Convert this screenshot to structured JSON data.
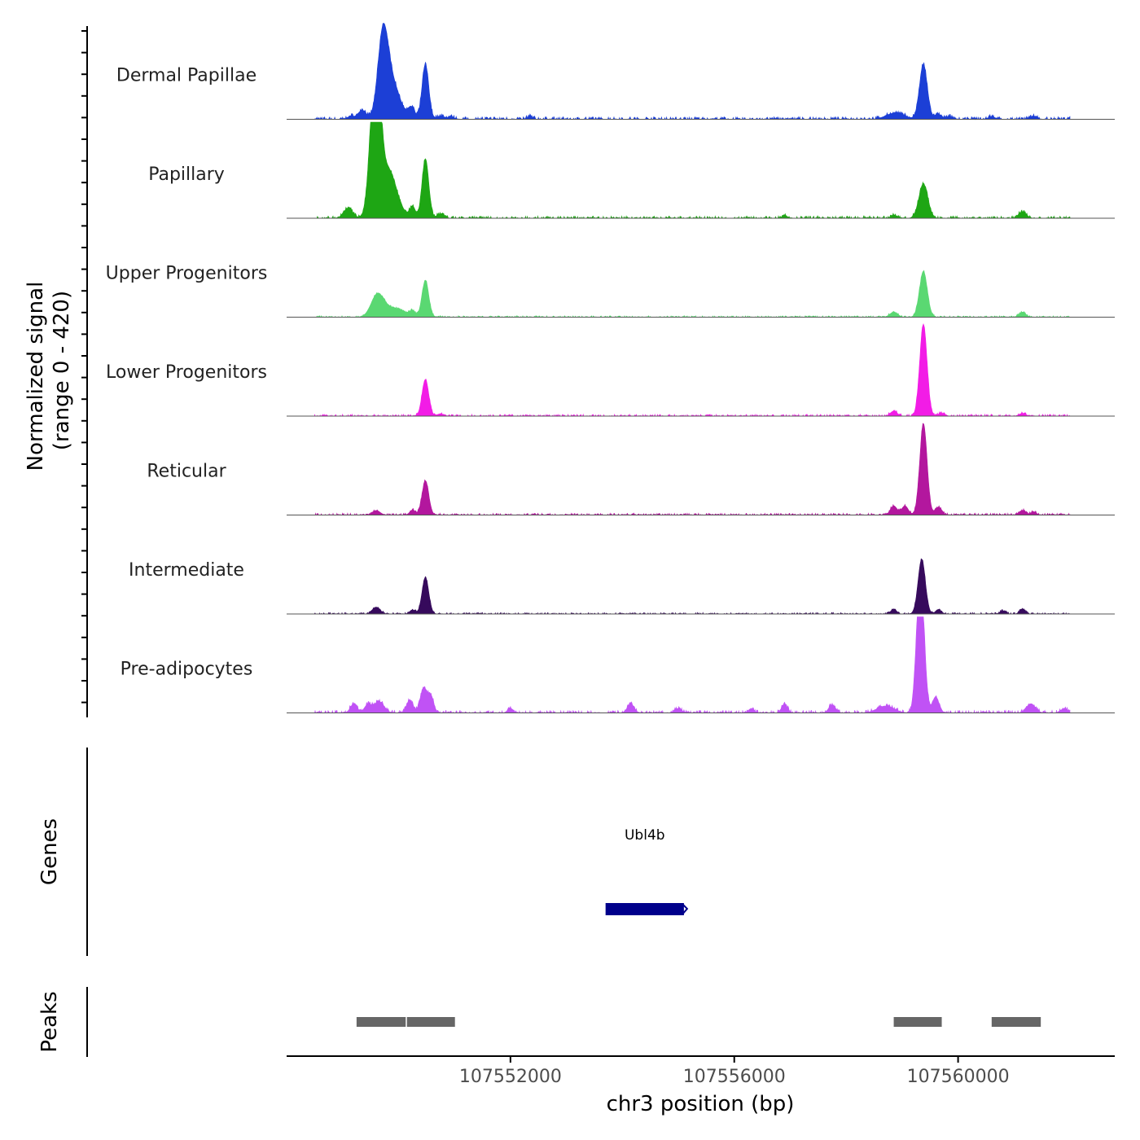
{
  "chart_data": {
    "type": "area",
    "title": "",
    "y_axis_label_line1": "Normalized signal",
    "y_axis_label_line2": "(range 0 - 420)",
    "genes_label": "Genes",
    "peaks_label": "Peaks",
    "xlabel": "chr3 position (bp)",
    "xlim": [
      107548000,
      107562800
    ],
    "ylim": [
      0,
      420
    ],
    "x_ticks": [
      107552000,
      107556000,
      107560000
    ],
    "x_tick_labels": [
      "107552000",
      "107556000",
      "107560000"
    ],
    "tracks": [
      {
        "name": "Dermal Papillae",
        "color": "#1c3fd6",
        "peaks": [
          {
            "center": 107549150,
            "width": 60,
            "height": 14
          },
          {
            "center": 107549350,
            "width": 70,
            "height": 40
          },
          {
            "center": 107549720,
            "width": 90,
            "height": 330
          },
          {
            "center": 107549880,
            "width": 140,
            "height": 160
          },
          {
            "center": 107550230,
            "width": 60,
            "height": 50
          },
          {
            "center": 107550480,
            "width": 60,
            "height": 240
          },
          {
            "center": 107550750,
            "width": 70,
            "height": 14
          },
          {
            "center": 107550950,
            "width": 50,
            "height": 10
          },
          {
            "center": 107552350,
            "width": 50,
            "height": 12
          },
          {
            "center": 107558880,
            "width": 160,
            "height": 28
          },
          {
            "center": 107559380,
            "width": 70,
            "height": 240
          },
          {
            "center": 107559650,
            "width": 60,
            "height": 22
          },
          {
            "center": 107559850,
            "width": 50,
            "height": 12
          },
          {
            "center": 107560600,
            "width": 60,
            "height": 12
          },
          {
            "center": 107561350,
            "width": 60,
            "height": 14
          },
          {
            "center": 107562050,
            "width": 50,
            "height": 20
          }
        ],
        "noise": 7
      },
      {
        "name": "Papillary",
        "color": "#1ea614",
        "peaks": [
          {
            "center": 107549100,
            "width": 80,
            "height": 45
          },
          {
            "center": 107549550,
            "width": 80,
            "height": 370
          },
          {
            "center": 107549620,
            "width": 70,
            "height": 400
          },
          {
            "center": 107549800,
            "width": 160,
            "height": 220
          },
          {
            "center": 107550250,
            "width": 50,
            "height": 50
          },
          {
            "center": 107550480,
            "width": 60,
            "height": 260
          },
          {
            "center": 107550750,
            "width": 60,
            "height": 20
          },
          {
            "center": 107556900,
            "width": 50,
            "height": 12
          },
          {
            "center": 107558850,
            "width": 50,
            "height": 15
          },
          {
            "center": 107559380,
            "width": 80,
            "height": 150
          },
          {
            "center": 107561150,
            "width": 70,
            "height": 28
          }
        ],
        "noise": 6
      },
      {
        "name": "Upper Progenitors",
        "color": "#5ad872",
        "peaks": [
          {
            "center": 107549620,
            "width": 110,
            "height": 90
          },
          {
            "center": 107549900,
            "width": 200,
            "height": 40
          },
          {
            "center": 107550250,
            "width": 50,
            "height": 22
          },
          {
            "center": 107550480,
            "width": 60,
            "height": 160
          },
          {
            "center": 107558850,
            "width": 70,
            "height": 22
          },
          {
            "center": 107559380,
            "width": 70,
            "height": 200
          },
          {
            "center": 107561150,
            "width": 60,
            "height": 22
          }
        ],
        "noise": 4
      },
      {
        "name": "Lower Progenitors",
        "color": "#f21ce6",
        "peaks": [
          {
            "center": 107550480,
            "width": 60,
            "height": 160
          },
          {
            "center": 107550750,
            "width": 60,
            "height": 10
          },
          {
            "center": 107558850,
            "width": 60,
            "height": 22
          },
          {
            "center": 107559380,
            "width": 65,
            "height": 400
          },
          {
            "center": 107559700,
            "width": 60,
            "height": 12
          },
          {
            "center": 107561150,
            "width": 60,
            "height": 12
          }
        ],
        "noise": 5
      },
      {
        "name": "Reticular",
        "color": "#b3179e",
        "peaks": [
          {
            "center": 107549600,
            "width": 70,
            "height": 20
          },
          {
            "center": 107550250,
            "width": 50,
            "height": 22
          },
          {
            "center": 107550480,
            "width": 60,
            "height": 150
          },
          {
            "center": 107558850,
            "width": 60,
            "height": 40
          },
          {
            "center": 107559050,
            "width": 60,
            "height": 40
          },
          {
            "center": 107559380,
            "width": 65,
            "height": 400
          },
          {
            "center": 107559650,
            "width": 60,
            "height": 35
          },
          {
            "center": 107561150,
            "width": 60,
            "height": 20
          },
          {
            "center": 107561350,
            "width": 50,
            "height": 14
          }
        ],
        "noise": 5
      },
      {
        "name": "Intermediate",
        "color": "#360a5c",
        "peaks": [
          {
            "center": 107549600,
            "width": 70,
            "height": 30
          },
          {
            "center": 107550250,
            "width": 50,
            "height": 18
          },
          {
            "center": 107550480,
            "width": 60,
            "height": 160
          },
          {
            "center": 107558850,
            "width": 50,
            "height": 22
          },
          {
            "center": 107559350,
            "width": 65,
            "height": 240
          },
          {
            "center": 107559650,
            "width": 50,
            "height": 20
          },
          {
            "center": 107560800,
            "width": 50,
            "height": 14
          },
          {
            "center": 107561150,
            "width": 50,
            "height": 22
          }
        ],
        "noise": 4
      },
      {
        "name": "Pre-adipocytes",
        "color": "#c052f5",
        "peaks": [
          {
            "center": 107549200,
            "width": 60,
            "height": 40
          },
          {
            "center": 107549450,
            "width": 60,
            "height": 35
          },
          {
            "center": 107549650,
            "width": 90,
            "height": 50
          },
          {
            "center": 107550200,
            "width": 60,
            "height": 55
          },
          {
            "center": 107550450,
            "width": 60,
            "height": 110
          },
          {
            "center": 107550580,
            "width": 50,
            "height": 70
          },
          {
            "center": 107552000,
            "width": 50,
            "height": 20
          },
          {
            "center": 107554150,
            "width": 60,
            "height": 40
          },
          {
            "center": 107555000,
            "width": 60,
            "height": 20
          },
          {
            "center": 107556300,
            "width": 50,
            "height": 18
          },
          {
            "center": 107556900,
            "width": 50,
            "height": 40
          },
          {
            "center": 107557750,
            "width": 60,
            "height": 35
          },
          {
            "center": 107558700,
            "width": 150,
            "height": 30
          },
          {
            "center": 107559300,
            "width": 60,
            "height": 380
          },
          {
            "center": 107559360,
            "width": 60,
            "height": 300
          },
          {
            "center": 107559600,
            "width": 60,
            "height": 70
          },
          {
            "center": 107561300,
            "width": 80,
            "height": 40
          },
          {
            "center": 107561900,
            "width": 60,
            "height": 20
          }
        ],
        "noise": 7
      }
    ],
    "genes": [
      {
        "name": "Ubl4b",
        "start": 107553700,
        "end": 107555100,
        "color": "#00008b"
      }
    ],
    "peaks": [
      {
        "start": 107549250,
        "end": 107550150
      },
      {
        "start": 107550150,
        "end": 107551030
      },
      {
        "start": 107558850,
        "end": 107559730
      },
      {
        "start": 107560600,
        "end": 107561500
      }
    ]
  }
}
